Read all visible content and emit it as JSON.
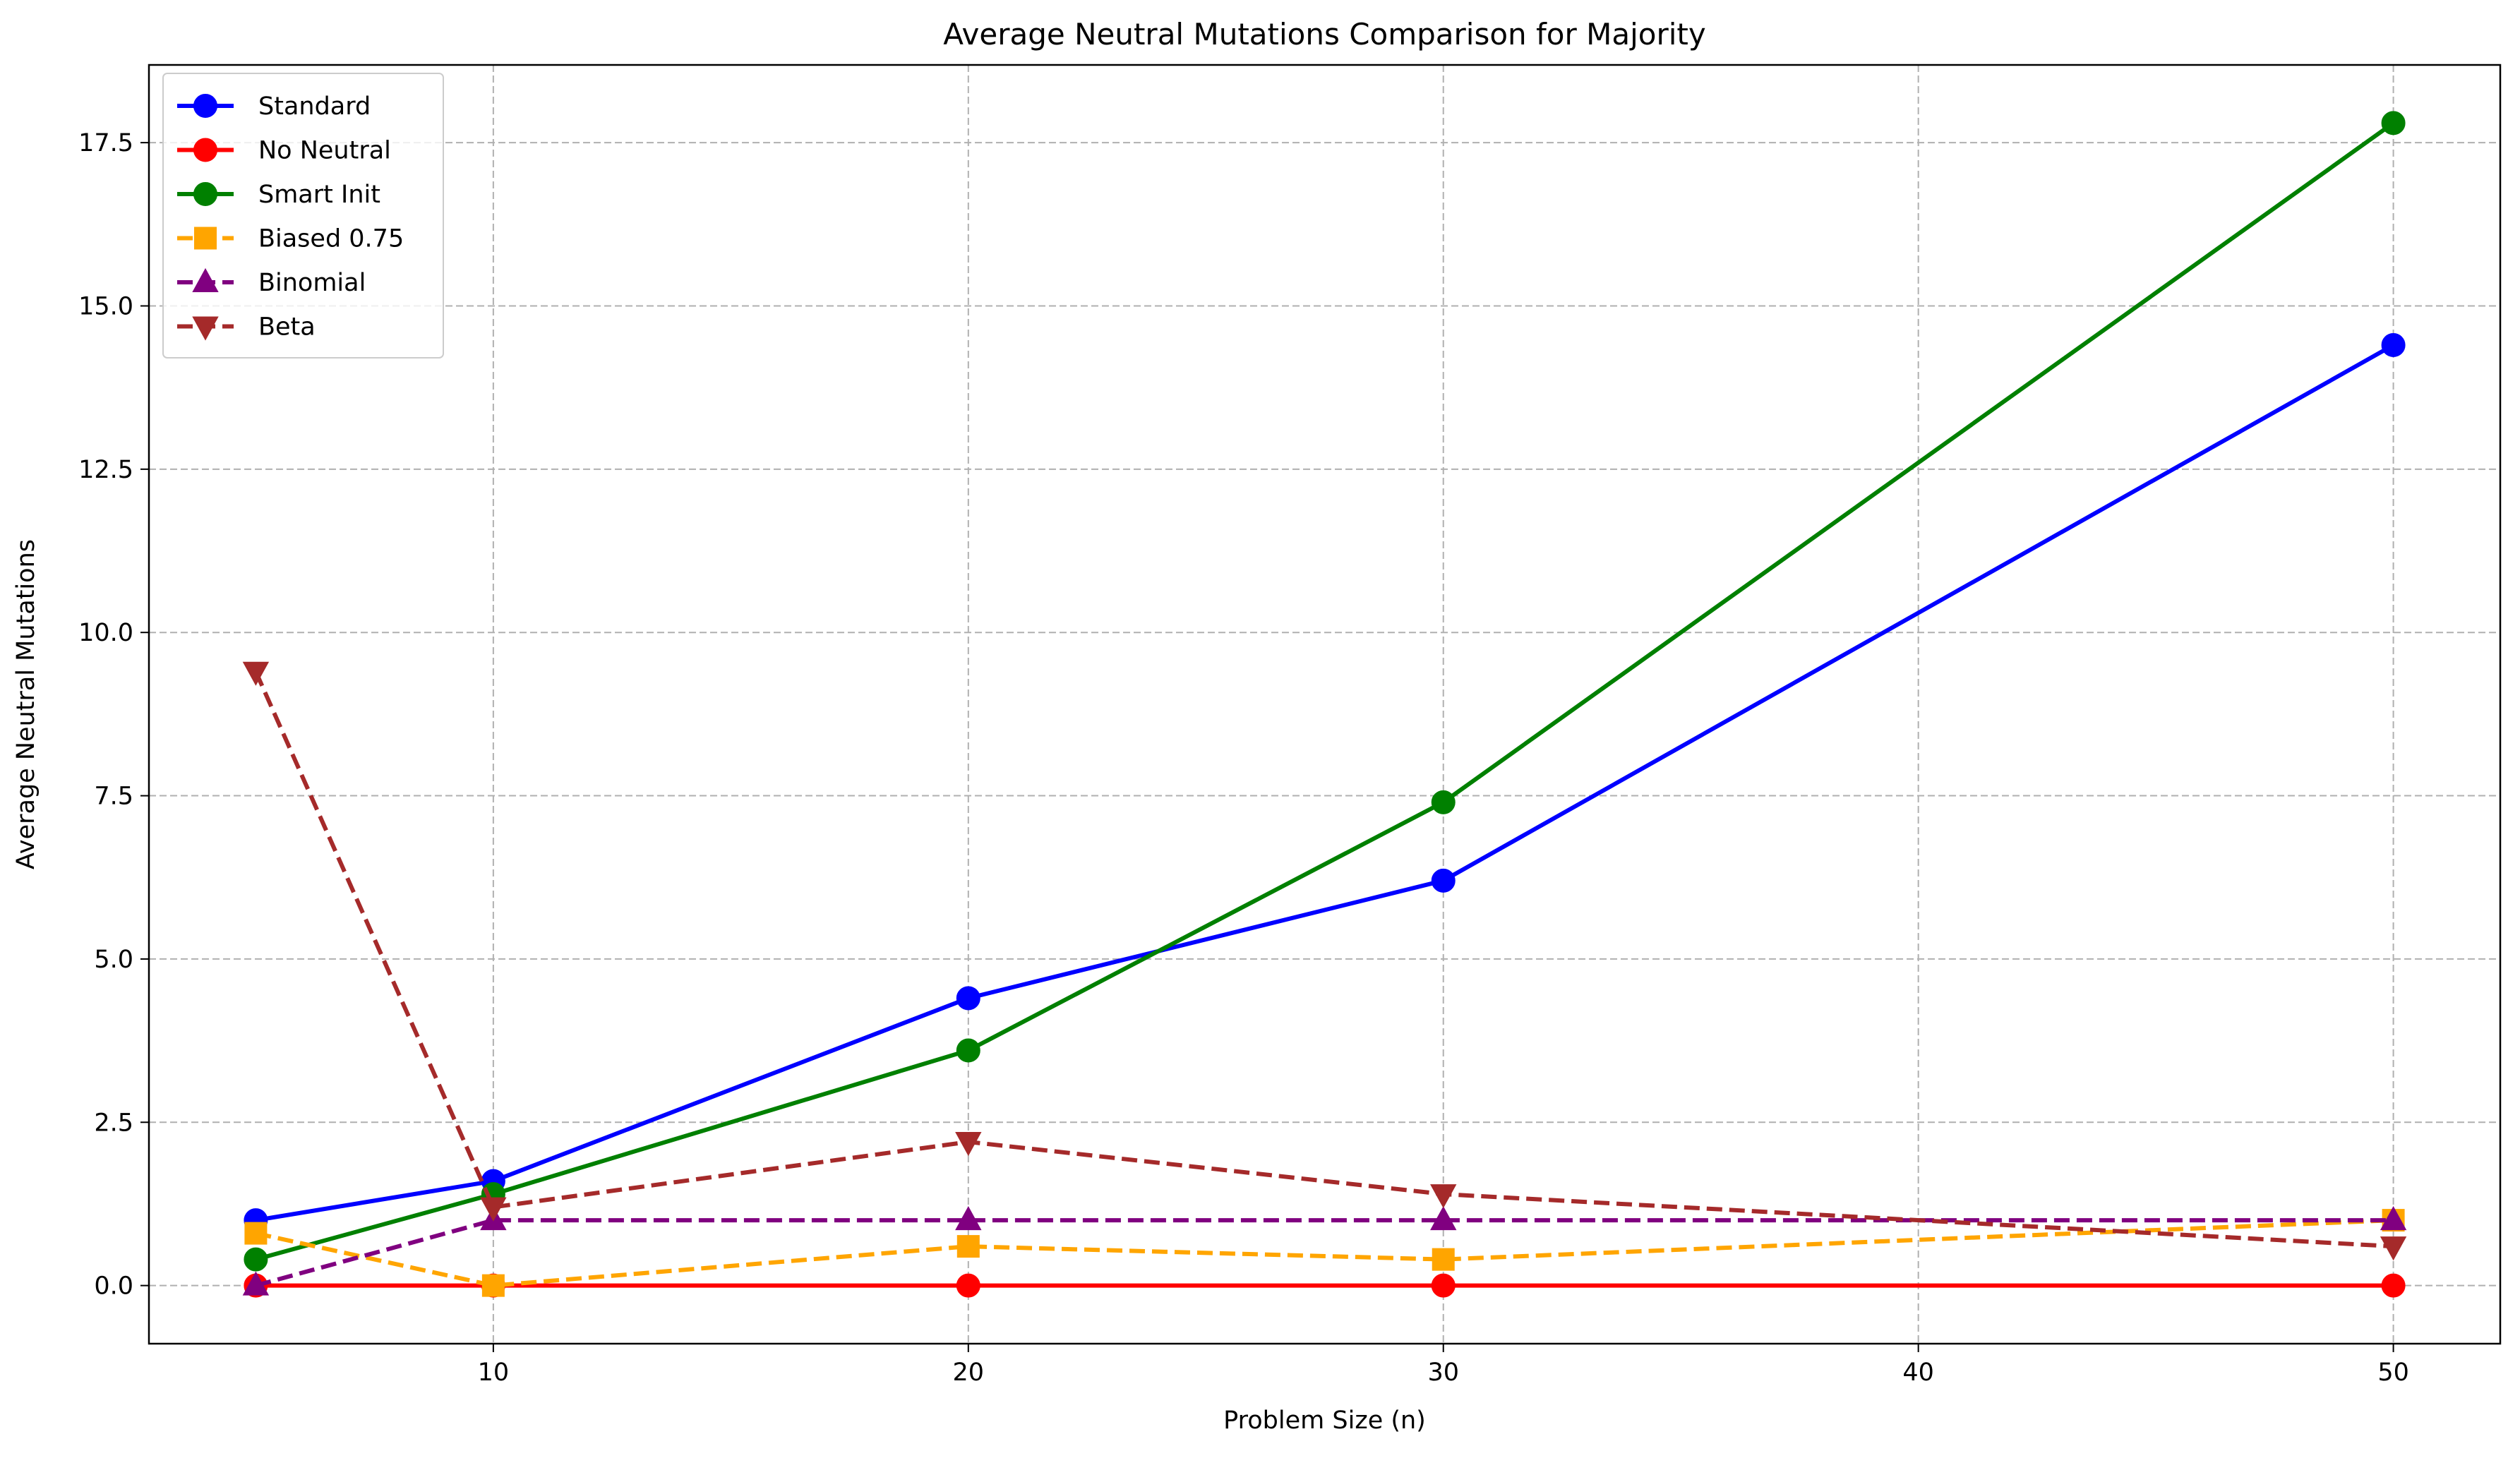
{
  "chart_data": {
    "type": "line",
    "title": "Average Neutral Mutations Comparison for Majority",
    "xlabel": "Problem Size (n)",
    "ylabel": "Average Neutral Mutations",
    "x": [
      5,
      10,
      20,
      30,
      50
    ],
    "xlim": [
      2.75,
      52.25
    ],
    "ylim": [
      -0.89,
      18.69
    ],
    "xticks": [
      10,
      20,
      30,
      40,
      50
    ],
    "xtick_labels": [
      "10",
      "20",
      "30",
      "40",
      "50"
    ],
    "yticks": [
      0,
      2.5,
      5,
      7.5,
      10,
      12.5,
      15,
      17.5
    ],
    "ytick_labels": [
      "0.0",
      "2.5",
      "5.0",
      "7.5",
      "10.0",
      "12.5",
      "15.0",
      "17.5"
    ],
    "grid": true,
    "legend_position": "top-left",
    "series": [
      {
        "name": "Standard",
        "values": [
          1.0,
          1.6,
          4.4,
          6.2,
          14.4
        ],
        "color": "#0000ff",
        "marker": "circle",
        "dashed": false
      },
      {
        "name": "No Neutral",
        "values": [
          0.0,
          0.0,
          0.0,
          0.0,
          0.0
        ],
        "color": "#ff0000",
        "marker": "circle",
        "dashed": false
      },
      {
        "name": "Smart Init",
        "values": [
          0.4,
          1.4,
          3.6,
          7.4,
          17.8
        ],
        "color": "#008000",
        "marker": "circle",
        "dashed": false
      },
      {
        "name": "Biased 0.75",
        "values": [
          0.8,
          0.0,
          0.6,
          0.4,
          1.0
        ],
        "color": "#ffa500",
        "marker": "square",
        "dashed": true
      },
      {
        "name": "Binomial",
        "values": [
          0.0,
          1.0,
          1.0,
          1.0,
          1.0
        ],
        "color": "#800080",
        "marker": "triangle-up",
        "dashed": true
      },
      {
        "name": "Beta",
        "values": [
          9.4,
          1.2,
          2.2,
          1.4,
          0.6
        ],
        "color": "#a52a2a",
        "marker": "triangle-down",
        "dashed": true
      }
    ]
  }
}
